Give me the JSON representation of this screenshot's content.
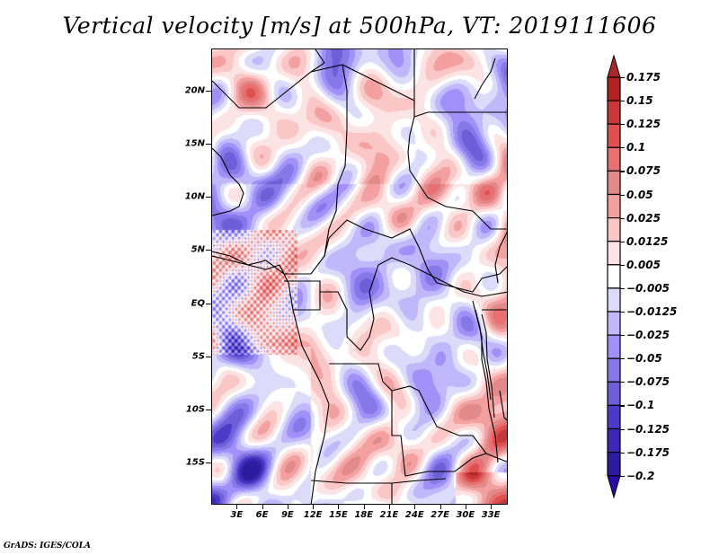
{
  "title": "Vertical velocity [m/s] at 500hPa, VT: 2019111606",
  "footer": "GrADS: IGES/COLA",
  "map": {
    "lon_range": [
      0,
      35
    ],
    "lat_range": [
      -19,
      24
    ],
    "y_ticks": [
      {
        "label": "20N",
        "lat": 20
      },
      {
        "label": "15N",
        "lat": 15
      },
      {
        "label": "10N",
        "lat": 10
      },
      {
        "label": "5N",
        "lat": 5
      },
      {
        "label": "EQ",
        "lat": 0
      },
      {
        "label": "5S",
        "lat": -5
      },
      {
        "label": "10S",
        "lat": -10
      },
      {
        "label": "15S",
        "lat": -15
      }
    ],
    "x_ticks": [
      {
        "label": "3E",
        "lon": 3
      },
      {
        "label": "6E",
        "lon": 6
      },
      {
        "label": "9E",
        "lon": 9
      },
      {
        "label": "12E",
        "lon": 12
      },
      {
        "label": "15E",
        "lon": 15
      },
      {
        "label": "18E",
        "lon": 18
      },
      {
        "label": "21E",
        "lon": 21
      },
      {
        "label": "24E",
        "lon": 24
      },
      {
        "label": "27E",
        "lon": 27
      },
      {
        "label": "30E",
        "lon": 30
      },
      {
        "label": "33E",
        "lon": 33
      }
    ]
  },
  "colorbar": {
    "levels": [
      {
        "label": "0.175",
        "color": "#b22222"
      },
      {
        "label": "0.15",
        "color": "#c83838"
      },
      {
        "label": "0.125",
        "color": "#e05050"
      },
      {
        "label": "0.1",
        "color": "#e87070"
      },
      {
        "label": "0.075",
        "color": "#e28a8a"
      },
      {
        "label": "0.05",
        "color": "#f4a0a0"
      },
      {
        "label": "0.025",
        "color": "#fac6c6"
      },
      {
        "label": "0.0125",
        "color": "#fde4e4"
      },
      {
        "label": "0.005",
        "color": "#ffffff"
      },
      {
        "label": "-0.005",
        "color": "#dcdcfa"
      },
      {
        "label": "-0.0125",
        "color": "#c0b8fa"
      },
      {
        "label": "-0.025",
        "color": "#a090f8"
      },
      {
        "label": "-0.05",
        "color": "#8678e8"
      },
      {
        "label": "-0.075",
        "color": "#6e5ed8"
      },
      {
        "label": "-0.1",
        "color": "#4a3cc8"
      },
      {
        "label": "-0.125",
        "color": "#3c28b4"
      },
      {
        "label": "-0.175",
        "color": "#2c1ca0"
      },
      {
        "label": "-0.2",
        "color": ""
      }
    ],
    "top_arrow_color": "#a8282c",
    "bottom_arrow_color": "#2a0aa8"
  }
}
